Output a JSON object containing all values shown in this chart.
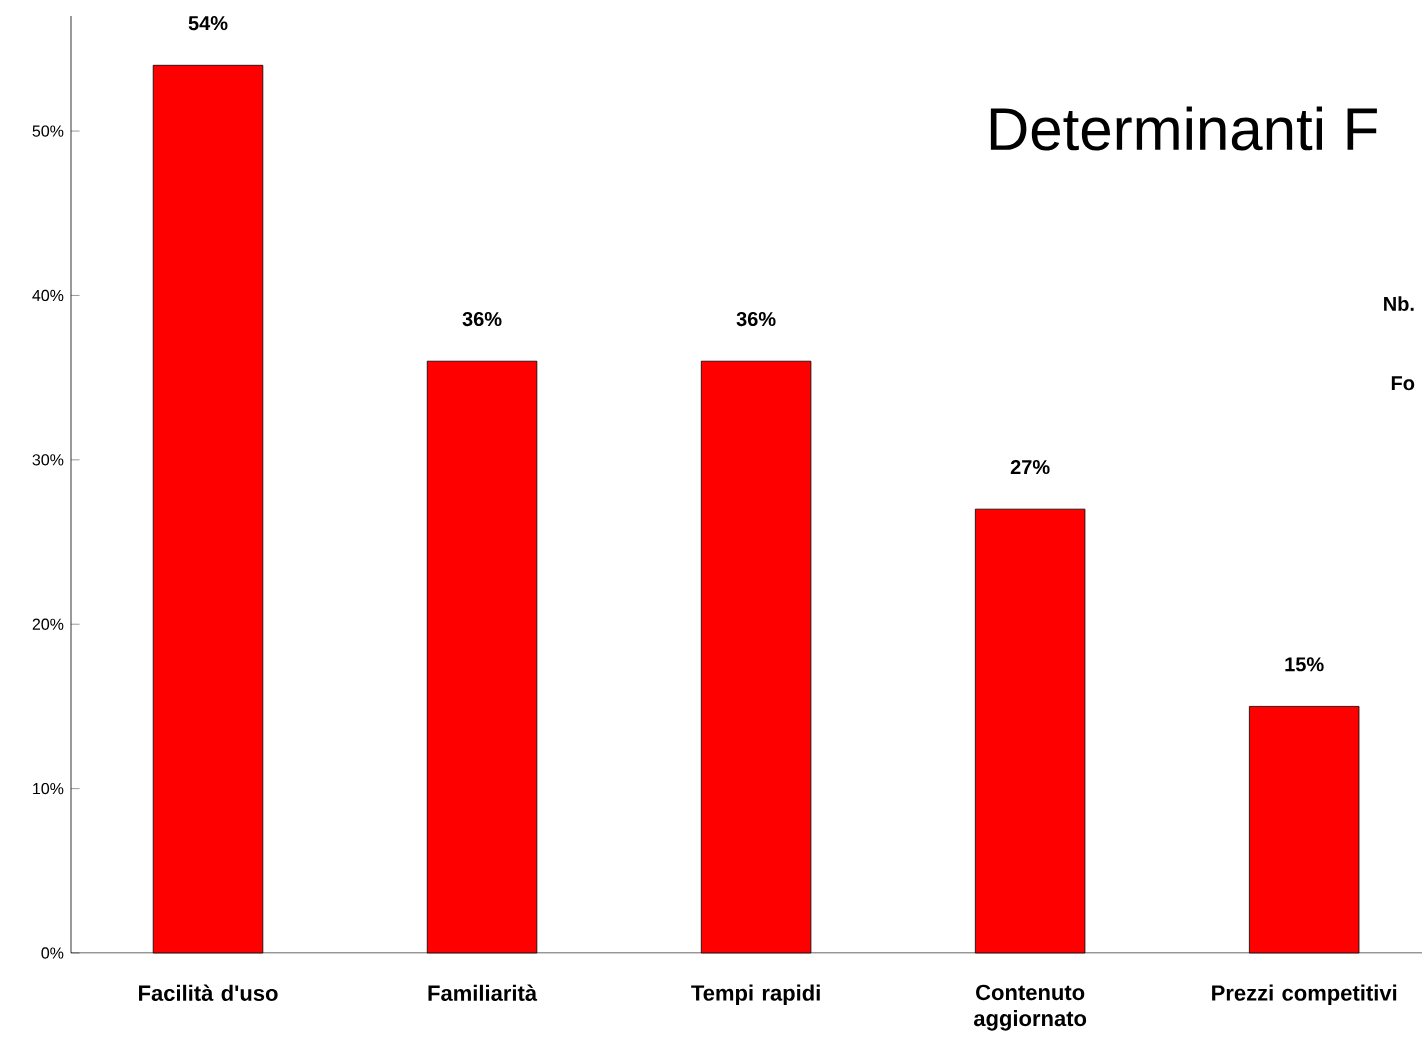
{
  "chart_data": {
    "type": "bar",
    "title": "Determinanti F",
    "categories": [
      "Facilità d'uso",
      "Familiarità",
      "Tempi rapidi",
      "Contenuto aggiornato",
      "Prezzi competitivi"
    ],
    "values": [
      54,
      36,
      36,
      27,
      15
    ],
    "value_labels": [
      "54%",
      "36%",
      "36%",
      "27%",
      "15%"
    ],
    "color": "#ff0000",
    "ylim": [
      0,
      57
    ],
    "yticks": [
      {
        "value": 0,
        "label": "0%"
      },
      {
        "value": 10,
        "label": "10%"
      },
      {
        "value": 20,
        "label": "20%"
      },
      {
        "value": 30,
        "label": "30%"
      },
      {
        "value": 40,
        "label": "40%"
      },
      {
        "value": 50,
        "label": "50%"
      }
    ],
    "annotations": [
      "Nb.",
      "Fo"
    ],
    "grid": false
  }
}
